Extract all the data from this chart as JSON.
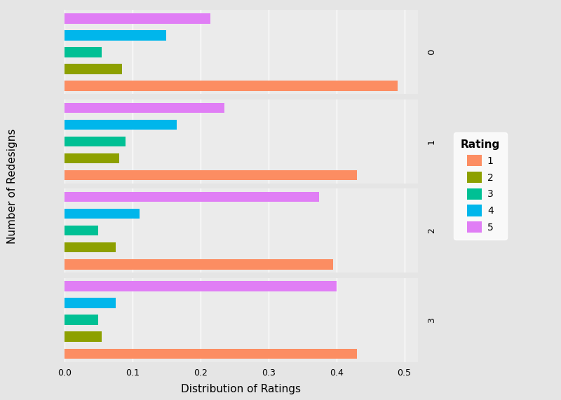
{
  "redesigns": [
    0,
    1,
    2,
    3
  ],
  "ratings": [
    "1",
    "2",
    "3",
    "4",
    "5"
  ],
  "colors": {
    "1": "#FC8D62",
    "2": "#8DA000",
    "3": "#00C094",
    "4": "#00B6EB",
    "5": "#E07EF5"
  },
  "values": {
    "0": {
      "1": 0.49,
      "2": 0.085,
      "3": 0.055,
      "4": 0.15,
      "5": 0.215
    },
    "1": {
      "1": 0.43,
      "2": 0.08,
      "3": 0.09,
      "4": 0.165,
      "5": 0.235
    },
    "2": {
      "1": 0.395,
      "2": 0.075,
      "3": 0.05,
      "4": 0.11,
      "5": 0.375
    },
    "3": {
      "1": 0.43,
      "2": 0.055,
      "3": 0.05,
      "4": 0.075,
      "5": 0.4
    }
  },
  "xlabel": "Distribution of Ratings",
  "ylabel": "Number of Redesigns",
  "legend_title": "Rating",
  "xlim": [
    0.0,
    0.52
  ],
  "xticks": [
    0.0,
    0.1,
    0.2,
    0.3,
    0.4,
    0.5
  ],
  "panel_bg": "#EBEBEB",
  "outer_bg": "#E5E5E5",
  "strip_bg": "#D9D9D9",
  "axis_fontsize": 11,
  "tick_fontsize": 9,
  "legend_fontsize": 10,
  "legend_title_fontsize": 11,
  "strip_fontsize": 9,
  "bar_height": 0.6
}
